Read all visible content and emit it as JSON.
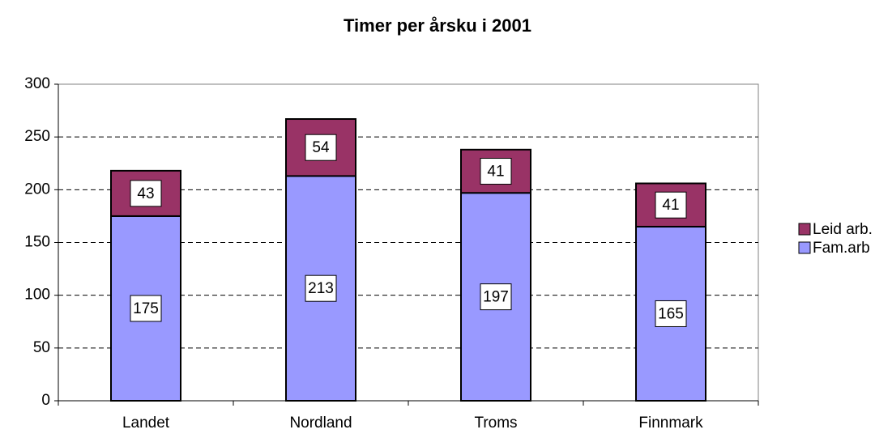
{
  "chart_data": {
    "type": "stacked_bar",
    "title": "Timer per årsku i 2001",
    "categories": [
      "Landet",
      "Nordland",
      "Troms",
      "Finnmark"
    ],
    "series": [
      {
        "name": "Fam.arb",
        "color": "#9999ff",
        "values": [
          175,
          213,
          197,
          165
        ]
      },
      {
        "name": "Leid arb.",
        "color": "#993366",
        "values": [
          43,
          54,
          41,
          41
        ]
      }
    ],
    "ylim": [
      0,
      300
    ],
    "yticks": [
      0,
      50,
      100,
      150,
      200,
      250,
      300
    ],
    "grid": true,
    "legend": "right"
  }
}
